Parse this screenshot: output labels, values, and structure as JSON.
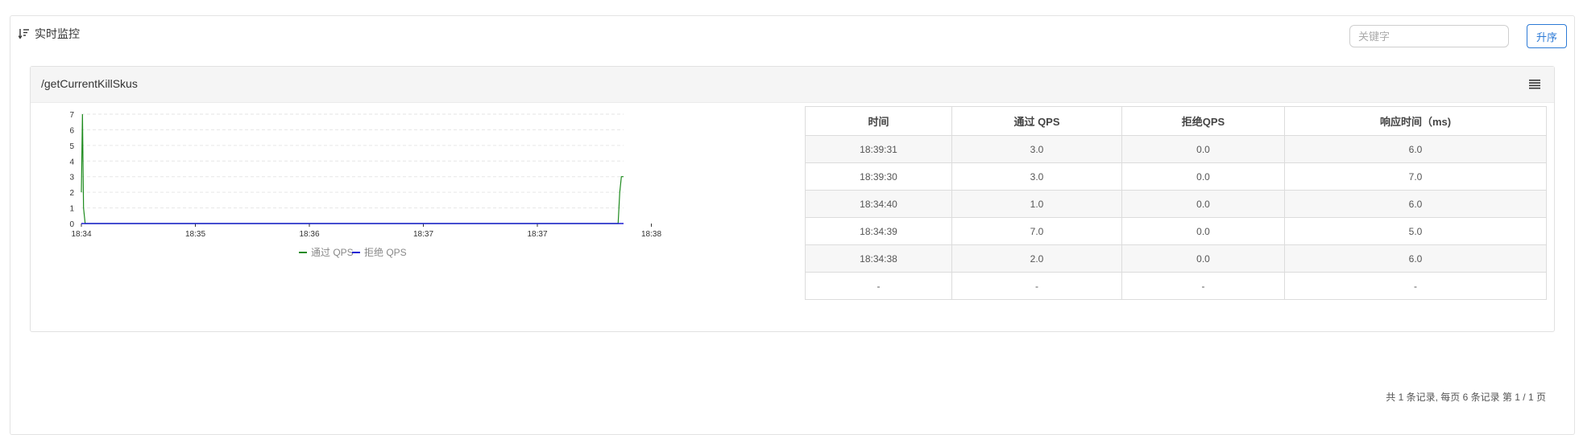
{
  "panel": {
    "title": "实时监控"
  },
  "search": {
    "placeholder": "关键字",
    "value": ""
  },
  "sort_button": {
    "label": "升序"
  },
  "resource": {
    "name": "/getCurrentKillSkus"
  },
  "table": {
    "headers": [
      "时间",
      "通过 QPS",
      "拒绝QPS",
      "响应时间（ms)"
    ],
    "rows": [
      [
        "18:39:31",
        "3.0",
        "0.0",
        "6.0"
      ],
      [
        "18:39:30",
        "3.0",
        "0.0",
        "7.0"
      ],
      [
        "18:34:40",
        "1.0",
        "0.0",
        "6.0"
      ],
      [
        "18:34:39",
        "7.0",
        "0.0",
        "5.0"
      ],
      [
        "18:34:38",
        "2.0",
        "0.0",
        "6.0"
      ],
      [
        "-",
        "-",
        "-",
        "-"
      ]
    ]
  },
  "pagination": {
    "text": "共 1 条记录, 每页 6 条记录 第 1 / 1 页"
  },
  "chart_data": {
    "type": "line",
    "x_tick_labels": [
      "18:34",
      "18:35",
      "18:36",
      "18:37",
      "18:37",
      "18:38"
    ],
    "y_ticks": [
      0,
      1,
      2,
      3,
      4,
      5,
      6,
      7
    ],
    "ylim": [
      0,
      7
    ],
    "grid": true,
    "legend_position": "bottom",
    "series": [
      {
        "name": "通过 QPS",
        "color": "#1e8b1e",
        "points": [
          [
            0.0,
            2
          ],
          [
            0.2,
            7
          ],
          [
            0.4,
            1
          ],
          [
            0.7,
            0
          ],
          [
            1.0,
            0
          ],
          [
            99.0,
            0
          ],
          [
            99.3,
            2
          ],
          [
            99.6,
            3
          ],
          [
            100.0,
            3
          ]
        ]
      },
      {
        "name": "拒绝 QPS",
        "color": "#1c1cd4",
        "points": [
          [
            0.0,
            0
          ],
          [
            100.0,
            0
          ]
        ]
      }
    ]
  }
}
